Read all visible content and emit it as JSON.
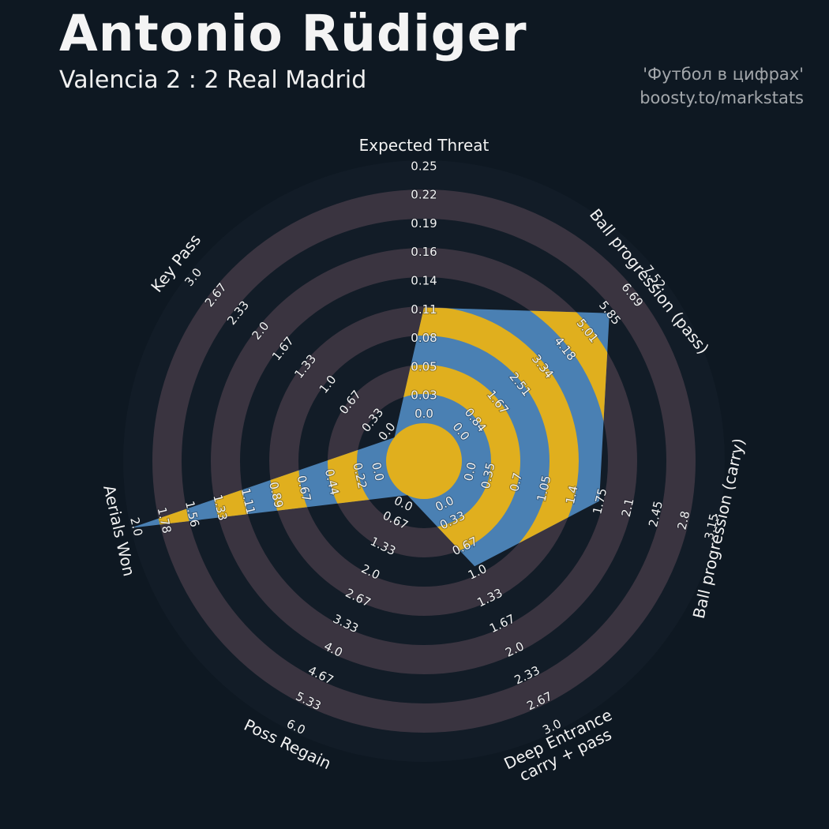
{
  "header": {
    "title": "Antonio Rüdiger",
    "subtitle": "Valencia 2 : 2 Real Madrid",
    "credit_line1": "'Футбол в цифрах'",
    "credit_line2": "boosty.to/markstats"
  },
  "colors": {
    "background": "#0e1822",
    "ring_dark": "#121c27",
    "ring_gray": "#3a3440",
    "radar_blue": "#4a80b3",
    "radar_yellow": "#e0af1e",
    "text_white": "#f2f2f2",
    "text_gray": "#a3a7ab"
  },
  "chart_data": {
    "type": "radar",
    "title": "Antonio Rüdiger",
    "subtitle": "Valencia 2 : 2 Real Madrid",
    "num_rings": 9,
    "legend_position": "none",
    "grid": "concentric-rings",
    "axes": [
      {
        "label": "Expected Threat",
        "value": 0.11,
        "max": 0.25,
        "ticks": [
          "0.0",
          "0.03",
          "0.05",
          "0.08",
          "0.11",
          "0.14",
          "0.16",
          "0.19",
          "0.22",
          "0.25"
        ]
      },
      {
        "label": "Ball progression (pass)",
        "value": 5.7,
        "max": 7.52,
        "ticks": [
          "0.0",
          "0.84",
          "1.67",
          "2.51",
          "3.34",
          "4.18",
          "5.01",
          "5.85",
          "6.69",
          "7.52"
        ]
      },
      {
        "label": "Ball progression (carry)",
        "value": 1.7,
        "max": 3.15,
        "ticks": [
          "0.0",
          "0.35",
          "0.7",
          "1.05",
          "1.4",
          "1.75",
          "2.1",
          "2.45",
          "2.8",
          "3.15"
        ]
      },
      {
        "label": "Deep Entrance\ncarry + pass",
        "value": 0.9,
        "max": 3.0,
        "ticks": [
          "0.0",
          "0.33",
          "0.67",
          "1.0",
          "1.33",
          "1.67",
          "2.0",
          "2.33",
          "2.67",
          "3.0"
        ]
      },
      {
        "label": "Poss Regain",
        "value": 0.0,
        "max": 6.0,
        "ticks": [
          "0.0",
          "0.67",
          "1.33",
          "2.0",
          "2.67",
          "3.33",
          "4.0",
          "4.67",
          "5.33",
          "6.0"
        ]
      },
      {
        "label": "Aerials Won",
        "value": 2.0,
        "max": 2.0,
        "ticks": [
          "0.0",
          "0.22",
          "0.44",
          "0.67",
          "0.89",
          "1.11",
          "1.33",
          "1.56",
          "1.78",
          "2.0"
        ]
      },
      {
        "label": "Key Pass",
        "value": 0.0,
        "max": 3.0,
        "ticks": [
          "0.0",
          "0.33",
          "0.67",
          "1.0",
          "1.33",
          "1.67",
          "2.0",
          "2.33",
          "2.67",
          "3.0"
        ]
      }
    ]
  }
}
